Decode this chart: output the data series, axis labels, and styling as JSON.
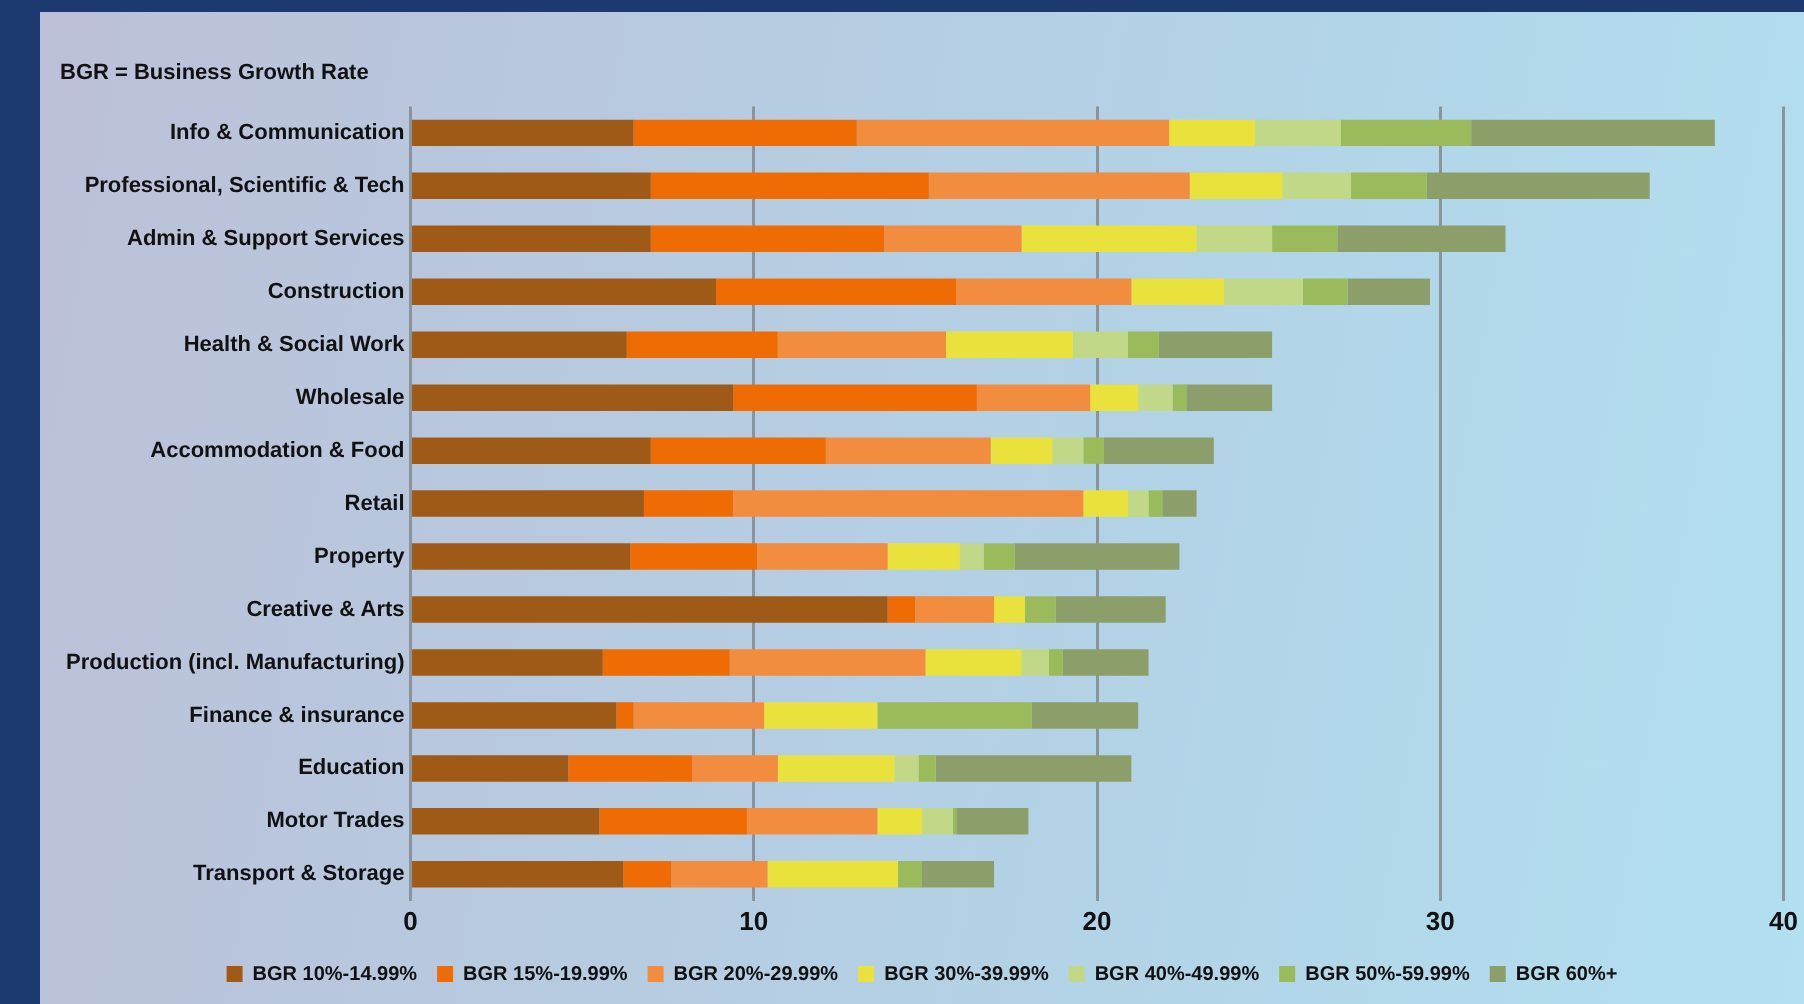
{
  "chart_data": {
    "type": "bar",
    "orientation": "horizontal",
    "stacked": true,
    "title": "BGR = Business Growth Rate",
    "categories": [
      "Info & Communication",
      "Professional, Scientific & Tech",
      "Admin & Support Services",
      "Construction",
      "Health & Social Work",
      "Wholesale",
      "Accommodation & Food",
      "Retail",
      "Property",
      "Creative & Arts",
      "Production (incl. Manufacturing)",
      "Finance & insurance",
      "Education",
      "Motor Trades",
      "Transport & Storage"
    ],
    "series": [
      {
        "name": "BGR 10%-14.99%",
        "color": "#a05a17",
        "values": [
          6.5,
          7.0,
          7.0,
          8.9,
          6.3,
          9.4,
          7.0,
          6.8,
          6.4,
          13.9,
          5.6,
          6.0,
          4.6,
          5.5,
          6.2
        ]
      },
      {
        "name": "BGR 15%-19.99%",
        "color": "#ef6c05",
        "values": [
          6.5,
          8.1,
          6.8,
          7.0,
          4.4,
          7.1,
          5.1,
          2.6,
          3.7,
          0.8,
          3.7,
          0.5,
          3.6,
          4.3,
          1.4
        ]
      },
      {
        "name": "BGR 20%-29.99%",
        "color": "#f28c3e",
        "values": [
          9.1,
          7.6,
          4.0,
          5.1,
          4.9,
          3.3,
          4.8,
          10.2,
          3.8,
          2.3,
          5.7,
          3.8,
          2.5,
          3.8,
          2.8
        ]
      },
      {
        "name": "BGR 30%-39.99%",
        "color": "#e9e23c",
        "values": [
          2.5,
          2.7,
          5.1,
          2.7,
          3.7,
          1.4,
          1.8,
          1.3,
          2.1,
          0.9,
          2.8,
          3.3,
          3.4,
          1.3,
          3.8
        ]
      },
      {
        "name": "BGR 40%-49.99%",
        "color": "#c0d888",
        "values": [
          2.5,
          2.0,
          2.2,
          2.3,
          1.6,
          1.0,
          0.9,
          0.6,
          0.7,
          0,
          0.8,
          0,
          0.7,
          0.9,
          0
        ]
      },
      {
        "name": "BGR 50%-59.99%",
        "color": "#9aba5c",
        "values": [
          3.8,
          2.2,
          1.9,
          1.3,
          0.9,
          0.4,
          0.6,
          0.4,
          0.9,
          0.9,
          0.4,
          4.5,
          0.5,
          0.1,
          0.7
        ]
      },
      {
        "name": "BGR 60%+",
        "color": "#8c9f6a",
        "values": [
          7.1,
          6.5,
          4.9,
          2.4,
          3.3,
          2.5,
          3.2,
          1.0,
          4.8,
          3.2,
          2.5,
          3.1,
          5.7,
          2.1,
          2.1
        ]
      }
    ],
    "xlim": [
      0,
      40
    ],
    "xticks": [
      0,
      10,
      20,
      30,
      40
    ],
    "grid": "x",
    "legend": "bottom"
  }
}
